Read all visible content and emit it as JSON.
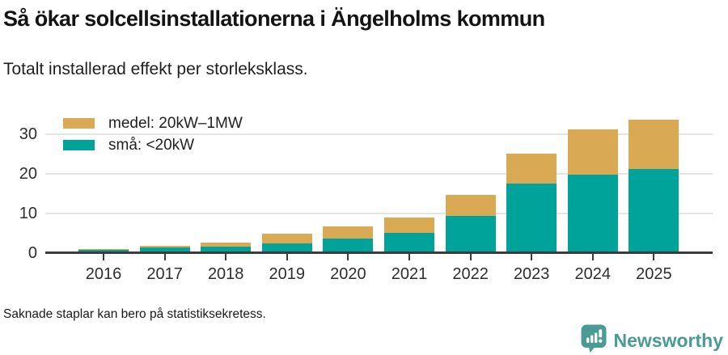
{
  "header": {
    "title": "Så ökar solcellsinstallationerna i Ängelholms kommun",
    "subtitle": "Totalt installerad effekt per storleksklass."
  },
  "footer": {
    "note": "Saknade staplar kan bero på statistiksekretess.",
    "brand": "Newsworthy",
    "brand_color": "#4a9b96"
  },
  "chart_data": {
    "type": "bar",
    "stacked": true,
    "title": "Så ökar solcellsinstallationerna i Ängelholms kommun",
    "xlabel": "",
    "ylabel": "",
    "categories": [
      "2016",
      "2017",
      "2018",
      "2019",
      "2020",
      "2021",
      "2022",
      "2023",
      "2024",
      "2025"
    ],
    "series": [
      {
        "name": "små: <20kW",
        "color": "#00a39a",
        "values": [
          0.4,
          1.0,
          1.2,
          2.0,
          3.3,
          4.8,
          9.0,
          17.1,
          19.4,
          20.9
        ]
      },
      {
        "name": "medel: 20kW–1MW",
        "color": "#d9a953",
        "values": [
          0.2,
          0.5,
          1.0,
          2.5,
          3.0,
          3.8,
          5.4,
          7.7,
          11.4,
          12.4
        ]
      }
    ],
    "totals": [
      0.6,
      1.5,
      2.2,
      4.5,
      6.3,
      8.6,
      14.4,
      24.8,
      30.8,
      33.3
    ],
    "legend_items": [
      {
        "label": "medel: 20kW–1MW",
        "color": "#d9a953"
      },
      {
        "label": "små: <20kW",
        "color": "#00a39a"
      }
    ],
    "legend_position": "top-left",
    "yticks": [
      0,
      10,
      20,
      30
    ],
    "ylim": [
      0,
      35
    ],
    "grid": "horizontal"
  }
}
